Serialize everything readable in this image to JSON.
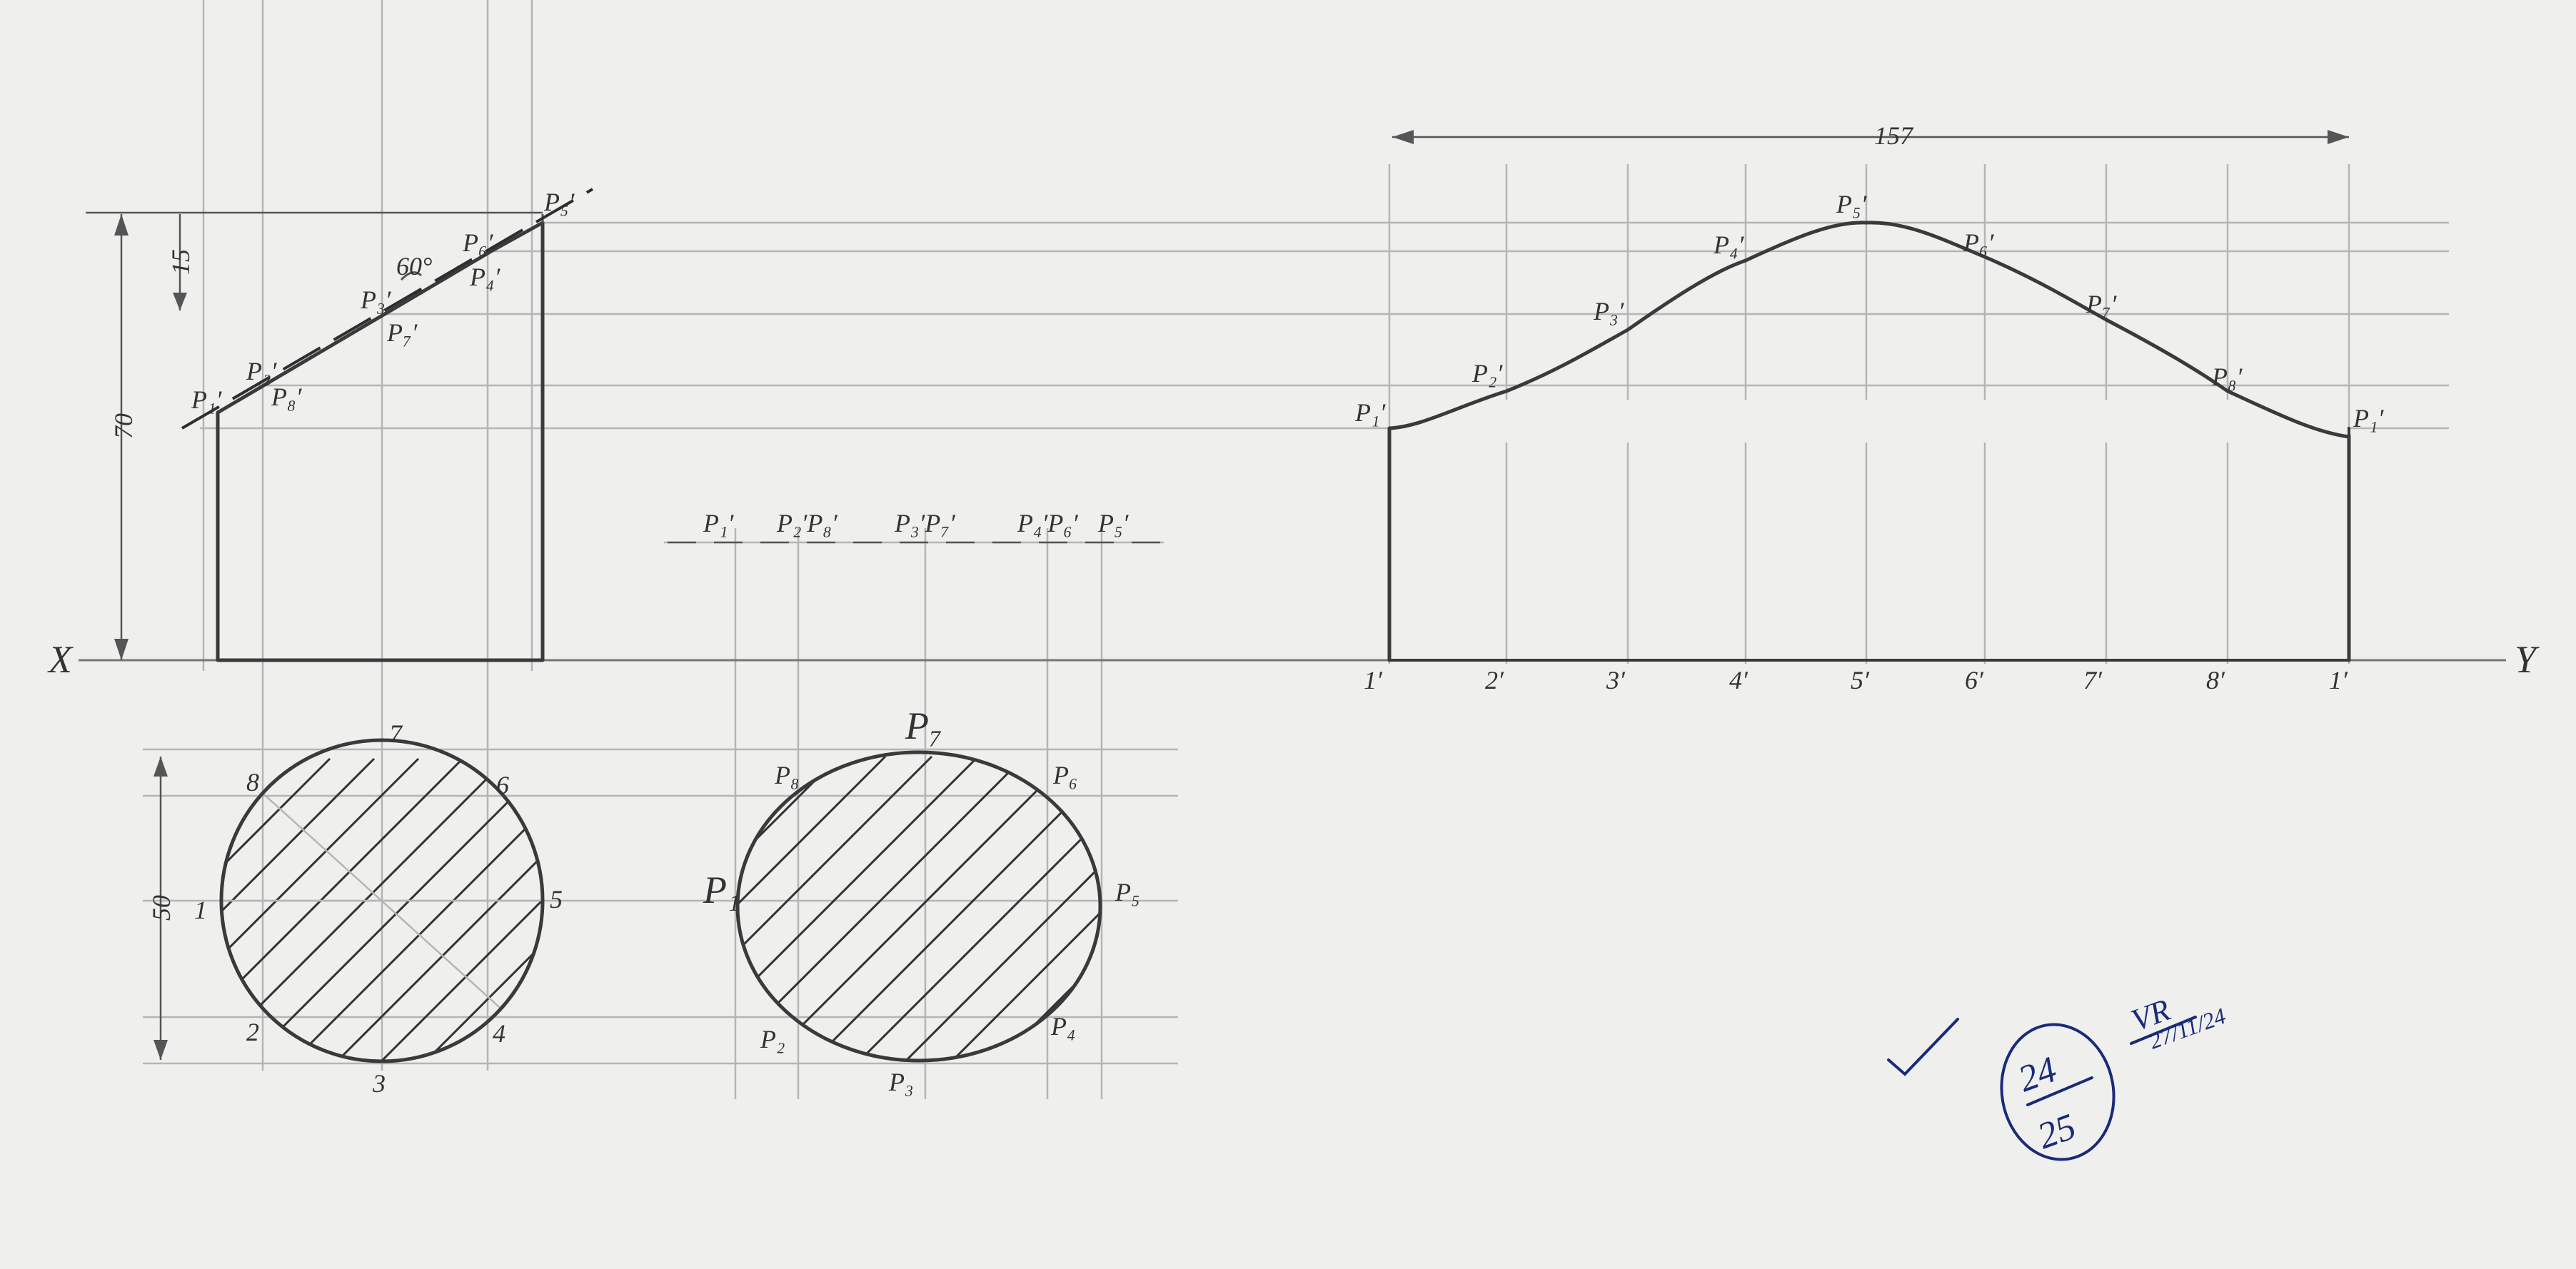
{
  "reference_line": {
    "left": "X",
    "right": "Y"
  },
  "dimensions": {
    "height": "70",
    "cut_depth": "15",
    "diameter": "50",
    "development_length": "157",
    "angle": "60°"
  },
  "front_view": {
    "points": [
      {
        "label": "P₁′"
      },
      {
        "label": "P₂′"
      },
      {
        "label": "P₈′"
      },
      {
        "label": "P₃′"
      },
      {
        "label": "P₇′"
      },
      {
        "label": "P₆′"
      },
      {
        "label": "P₄′"
      },
      {
        "label": "P₅′"
      }
    ]
  },
  "top_view": {
    "labels": [
      "1",
      "2",
      "3",
      "4",
      "5",
      "6",
      "7",
      "8"
    ]
  },
  "true_shape": {
    "top_labels": [
      "P₁′",
      "P₂′P₈′",
      "P₃′P₇′",
      "P₄′P₆′",
      "P₅′"
    ],
    "labels": [
      "P₁",
      "P₂",
      "P₃",
      "P₄",
      "P₅",
      "P₆",
      "P₇",
      "P₈"
    ]
  },
  "development": {
    "base_labels": [
      "1′",
      "2′",
      "3′",
      "4′",
      "5′",
      "6′",
      "7′",
      "8′",
      "1′"
    ],
    "curve_labels": [
      "P₁′",
      "P₂′",
      "P₃′",
      "P₄′",
      "P₅′",
      "P₆′",
      "P₇′",
      "P₈′",
      "P₁′"
    ]
  },
  "grading": {
    "score": "24",
    "out_of": "25",
    "initials": "VR",
    "date": "27/11/24"
  }
}
